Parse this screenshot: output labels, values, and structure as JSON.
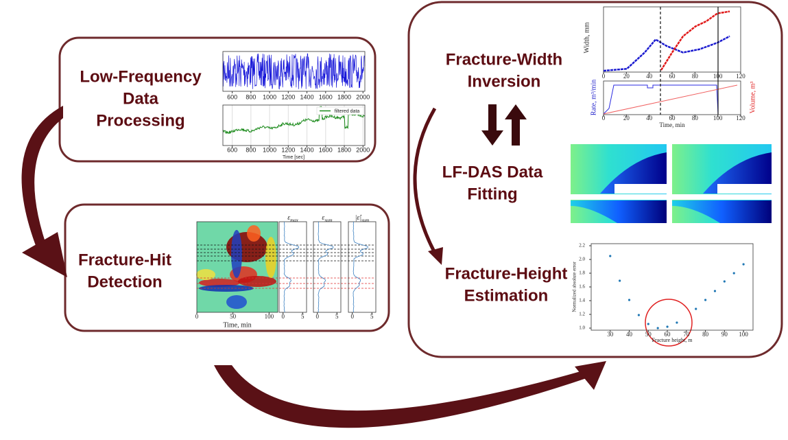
{
  "stages": [
    {
      "lines": [
        "Low-Frequency",
        "Data",
        "Processing"
      ]
    },
    {
      "lines": [
        "Fracture-Hit",
        "Detection"
      ]
    },
    {
      "lines": [
        "Fracture-Width",
        "Inversion"
      ]
    },
    {
      "lines": [
        "LF-DAS Data",
        "Fitting"
      ]
    },
    {
      "lines": [
        "Fracture-Height",
        "Estimation"
      ]
    }
  ],
  "panels": {
    "raw_signal": {
      "xlim": [
        500,
        2020
      ],
      "xticks": [
        600,
        800,
        1000,
        1200,
        1400,
        1600,
        1800,
        2000
      ]
    },
    "filtered_signal": {
      "legend": "filtered data",
      "xlabel": "Time [sec]",
      "xlim": [
        500,
        2020
      ],
      "xticks": [
        600,
        800,
        1000,
        1200,
        1400,
        1600,
        1800,
        2000
      ]
    },
    "hit_map": {
      "xlabel": "Time, min",
      "xlim": [
        0,
        112
      ],
      "xticks": [
        0,
        50,
        100
      ]
    },
    "hit_profiles": [
      {
        "symbol": "ε",
        "subscript": "max",
        "xlim": [
          -1,
          6
        ],
        "xticks": [
          0,
          5
        ]
      },
      {
        "symbol": "ε",
        "subscript": "sum",
        "xlim": [
          -1,
          6
        ],
        "xticks": [
          0,
          5
        ]
      },
      {
        "symbol": "|ε̇|",
        "subscript": "sum",
        "xlim": [
          -1,
          6
        ],
        "xticks": [
          0,
          5
        ]
      }
    ],
    "width_chart": {
      "ylabel": "Width, mm",
      "xlim": [
        0,
        120
      ],
      "xticks": [
        0,
        20,
        40,
        60,
        80,
        100,
        120
      ]
    },
    "rate_chart": {
      "ylabel": "Rate, m³/min",
      "y2label": "Volume, m³",
      "xlabel": "Time, min",
      "xlim": [
        0,
        120
      ],
      "xticks": [
        0,
        20,
        40,
        60,
        80,
        100,
        120
      ]
    },
    "height_error_chart": {
      "type": "scatter",
      "xlabel": "Fracture height, m",
      "ylabel": "Normalized absolute error",
      "color": "#1f77b4",
      "x": [
        30,
        35,
        40,
        45,
        50,
        55,
        60,
        65,
        75,
        80,
        85,
        90,
        95,
        100
      ],
      "values": [
        2.05,
        1.69,
        1.41,
        1.19,
        1.06,
        1.0,
        1.02,
        1.08,
        1.28,
        1.41,
        1.54,
        1.68,
        1.8,
        1.93
      ],
      "xlim": [
        20,
        105
      ],
      "xticks": [
        30,
        40,
        50,
        60,
        70,
        80,
        90,
        100
      ],
      "ylim": [
        0.97,
        2.23
      ],
      "yticks": [
        {
          "value": 1.0,
          "label": "1.0"
        },
        1.2,
        1.4,
        1.6,
        1.8,
        {
          "value": 2.0,
          "label": "2.0"
        },
        2.2
      ]
    }
  }
}
